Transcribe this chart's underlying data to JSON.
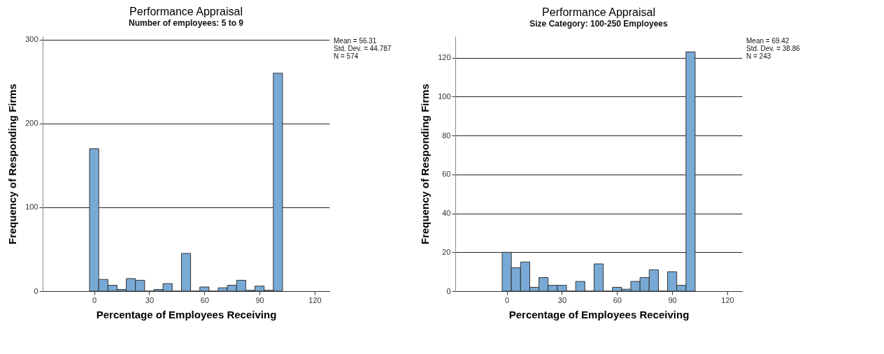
{
  "chart_data": [
    {
      "type": "histogram",
      "title": "Performance Appraisal",
      "subtitle": "Number of employees: 5 to 9",
      "xlabel": "Percentage of Employees Receiving",
      "ylabel": "Frequency of Responding Firms",
      "bins": [
        -2.5,
        2.5,
        7.5,
        12.5,
        17.5,
        22.5,
        27.5,
        32.5,
        37.5,
        42.5,
        47.5,
        52.5,
        57.5,
        62.5,
        67.5,
        72.5,
        77.5,
        82.5,
        87.5,
        92.5,
        97.5,
        102.5
      ],
      "values": [
        170,
        14,
        7,
        2,
        15,
        13,
        0,
        2,
        9,
        0,
        45,
        0,
        5,
        0,
        4,
        7,
        13,
        1,
        6,
        1,
        260
      ],
      "color": "#79aad6",
      "xlim": [
        -28,
        128
      ],
      "xticks": [
        0,
        30,
        60,
        90,
        120
      ],
      "ylim": [
        0,
        304
      ],
      "yticks": [
        0,
        100,
        200,
        300
      ],
      "grid": "y",
      "annotations": [
        "Mean = 56.31",
        "Std. Dev. = 44.787",
        "N = 574"
      ]
    },
    {
      "type": "histogram",
      "title": "Performance Appraisal",
      "subtitle": "Size Category: 100-250 Employees",
      "xlabel": "Percentage of Employees Receiving",
      "ylabel": "Frequency of Responding Firms",
      "bins": [
        -2.5,
        2.5,
        7.5,
        12.5,
        17.5,
        22.5,
        27.5,
        32.5,
        37.5,
        42.5,
        47.5,
        52.5,
        57.5,
        62.5,
        67.5,
        72.5,
        77.5,
        82.5,
        87.5,
        92.5,
        97.5,
        102.5
      ],
      "values": [
        20,
        12,
        15,
        2,
        7,
        3,
        3,
        0,
        5,
        0,
        14,
        0,
        2,
        1,
        5,
        7,
        11,
        0,
        10,
        3,
        123
      ],
      "color": "#79aad6",
      "xlim": [
        -28,
        128
      ],
      "xticks": [
        0,
        30,
        60,
        90,
        120
      ],
      "ylim": [
        0,
        131
      ],
      "yticks": [
        0,
        20,
        40,
        60,
        80,
        100,
        120
      ],
      "grid": "y",
      "annotations": [
        "Mean = 69.42",
        "Std. Dev. = 38.86",
        "N = 243"
      ]
    }
  ]
}
